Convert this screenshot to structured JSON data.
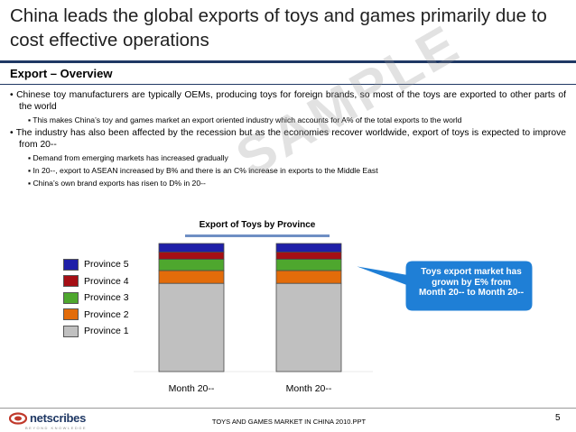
{
  "slide": {
    "title": "China leads the global exports of toys and games primarily due to cost effective operations",
    "section": "Export – Overview",
    "bullets": [
      {
        "level": 1,
        "text": "Chinese toy manufacturers are typically OEMs, producing toys for foreign brands, so most of the toys are exported to other parts of the world"
      },
      {
        "level": 2,
        "text": "This makes China’s toy and games market an export oriented industry which accounts for A% of the total exports to the world"
      },
      {
        "level": 1,
        "text": "The industry has also been affected by the recession but as the economies recover worldwide, export of toys is expected to improve from 20--"
      },
      {
        "level": 2,
        "text": "Demand from emerging markets has increased gradually"
      },
      {
        "level": 2,
        "text": "In 20--, export to ASEAN increased by B% and there is an C% increase in exports to the Middle East"
      },
      {
        "level": 2,
        "text": "China’s own brand exports has risen to D% in 20--"
      }
    ],
    "watermark": "SAMPLE",
    "callout": "Toys export market has grown by E% from Month 20-- to Month 20--",
    "footer": {
      "logo_text": "netscribes",
      "logo_tagline": "BEYOND KNOWLEDGE",
      "document_name": "TOYS AND GAMES MARKET IN CHINA 2010.PPT",
      "page_number": "5"
    }
  },
  "chart_data": {
    "type": "bar",
    "stacked": true,
    "title": "Export of Toys by Province",
    "categories": [
      "Month 20--",
      "Month 20--"
    ],
    "series": [
      {
        "name": "Province 1",
        "color": "#c0c0c0",
        "values": [
          62,
          62
        ]
      },
      {
        "name": "Province 2",
        "color": "#e36c0a",
        "values": [
          9,
          9
        ]
      },
      {
        "name": "Province 3",
        "color": "#4ea72e",
        "values": [
          8,
          8
        ]
      },
      {
        "name": "Province 4",
        "color": "#a50f15",
        "values": [
          5,
          5
        ]
      },
      {
        "name": "Province 5",
        "color": "#1f1fa8",
        "values": [
          6,
          6
        ]
      }
    ],
    "ylim": [
      0,
      90
    ],
    "legend_position": "left",
    "grid": false
  },
  "colors": {
    "title_rule": "#1f3864",
    "callout_fill": "#1f7fd6"
  }
}
